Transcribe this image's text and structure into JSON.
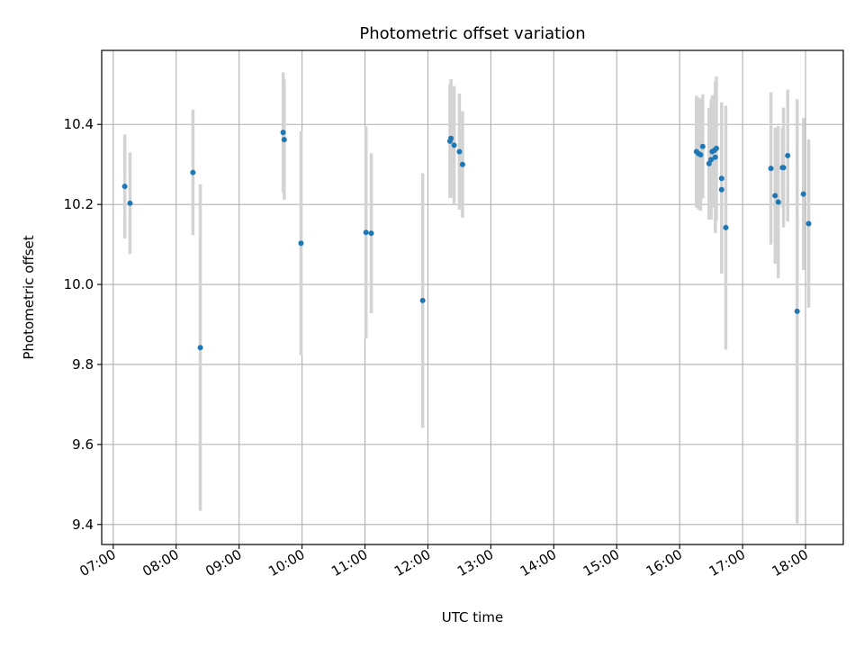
{
  "chart_data": {
    "type": "scatter",
    "title": "Photometric offset variation",
    "xlabel": "UTC time",
    "ylabel": "Photometric offset",
    "x_ticks": [
      "07:00",
      "08:00",
      "09:00",
      "10:00",
      "11:00",
      "12:00",
      "13:00",
      "14:00",
      "15:00",
      "16:00",
      "17:00",
      "18:00"
    ],
    "y_ticks": [
      "9.4",
      "9.6",
      "9.8",
      "10.0",
      "10.2",
      "10.4"
    ],
    "xlim": [
      "06:49",
      "18:36"
    ],
    "ylim": [
      9.35,
      10.585
    ],
    "grid": true,
    "marker_color": "#1f77b4",
    "errorbar_color": "#d3d3d3",
    "series": [
      {
        "points": [
          {
            "x": "07:11",
            "y": 10.245,
            "err": 0.13
          },
          {
            "x": "07:16",
            "y": 10.203,
            "err": 0.127
          },
          {
            "x": "08:16",
            "y": 10.28,
            "err": 0.157
          },
          {
            "x": "08:23",
            "y": 9.842,
            "err": 0.408
          },
          {
            "x": "09:42",
            "y": 10.38,
            "err": 0.15
          },
          {
            "x": "09:43",
            "y": 10.362,
            "err": 0.15
          },
          {
            "x": "09:59",
            "y": 10.103,
            "err": 0.28
          },
          {
            "x": "11:01",
            "y": 10.13,
            "err": 0.265
          },
          {
            "x": "11:06",
            "y": 10.128,
            "err": 0.2
          },
          {
            "x": "11:55",
            "y": 9.96,
            "err": 0.318
          },
          {
            "x": "12:21",
            "y": 10.358,
            "err": 0.142
          },
          {
            "x": "12:22",
            "y": 10.365,
            "err": 0.148
          },
          {
            "x": "12:25",
            "y": 10.348,
            "err": 0.148
          },
          {
            "x": "12:30",
            "y": 10.332,
            "err": 0.145
          },
          {
            "x": "12:33",
            "y": 10.3,
            "err": 0.133
          },
          {
            "x": "16:16",
            "y": 10.332,
            "err": 0.14
          },
          {
            "x": "16:18",
            "y": 10.327,
            "err": 0.14
          },
          {
            "x": "16:20",
            "y": 10.324,
            "err": 0.14
          },
          {
            "x": "16:22",
            "y": 10.345,
            "err": 0.13
          },
          {
            "x": "16:28",
            "y": 10.302,
            "err": 0.14
          },
          {
            "x": "16:30",
            "y": 10.312,
            "err": 0.15
          },
          {
            "x": "16:31",
            "y": 10.332,
            "err": 0.14
          },
          {
            "x": "16:33",
            "y": 10.335,
            "err": 0.14
          },
          {
            "x": "16:34",
            "y": 10.318,
            "err": 0.19
          },
          {
            "x": "16:35",
            "y": 10.34,
            "err": 0.18
          },
          {
            "x": "16:40",
            "y": 10.265,
            "err": 0.19
          },
          {
            "x": "16:40",
            "y": 10.237,
            "err": 0.21
          },
          {
            "x": "16:44",
            "y": 10.142,
            "err": 0.305
          },
          {
            "x": "17:27",
            "y": 10.29,
            "err": 0.19
          },
          {
            "x": "17:31",
            "y": 10.222,
            "err": 0.17
          },
          {
            "x": "17:34",
            "y": 10.206,
            "err": 0.19
          },
          {
            "x": "17:38",
            "y": 10.292,
            "err": 0.1
          },
          {
            "x": "17:39",
            "y": 10.292,
            "err": 0.15
          },
          {
            "x": "17:43",
            "y": 10.322,
            "err": 0.165
          },
          {
            "x": "17:52",
            "y": 9.933,
            "err": 0.53
          },
          {
            "x": "17:58",
            "y": 10.226,
            "err": 0.19
          },
          {
            "x": "18:03",
            "y": 10.152,
            "err": 0.21
          }
        ]
      }
    ]
  }
}
